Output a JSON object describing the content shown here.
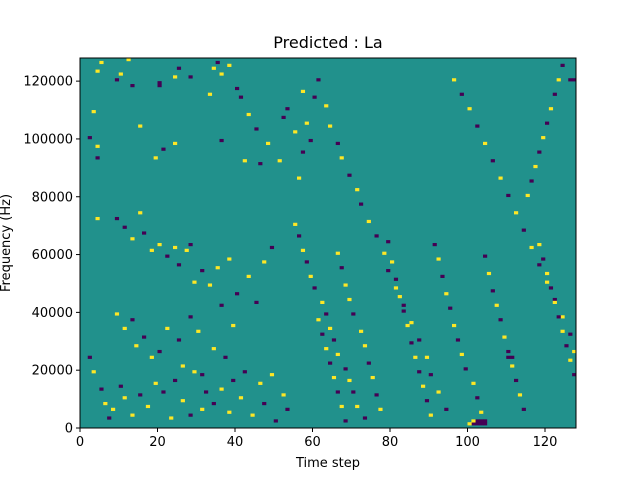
{
  "chart_data": {
    "type": "heatmap",
    "title": "Predicted : La",
    "xlabel": "Time step",
    "ylabel": "Frequency (Hz)",
    "xlim": [
      0,
      128
    ],
    "ylim": [
      0,
      128000
    ],
    "x_ticks": [
      0,
      20,
      40,
      60,
      80,
      100,
      120
    ],
    "y_ticks": [
      0,
      20000,
      40000,
      60000,
      80000,
      100000,
      120000
    ],
    "x_tick_labels": [
      "0",
      "20",
      "40",
      "60",
      "80",
      "100",
      "120"
    ],
    "y_tick_labels": [
      "0",
      "20000",
      "40000",
      "60000",
      "80000",
      "100000",
      "120000"
    ],
    "grid": false,
    "colormap": "viridis",
    "background_value": 0,
    "colors": {
      "background": "#21918c",
      "high": "#fde725",
      "low": "#440154"
    },
    "n_rows": 128,
    "n_cols": 128,
    "note_values": "1 = high (yellow), -1 = low (purple)",
    "cells": [
      [
        4,
        123,
        1
      ],
      [
        5,
        126,
        1
      ],
      [
        9,
        120,
        -1
      ],
      [
        10,
        122,
        1
      ],
      [
        12,
        127,
        1
      ],
      [
        13,
        118,
        -1
      ],
      [
        15,
        104,
        1
      ],
      [
        20,
        119,
        -1
      ],
      [
        24,
        121,
        1
      ],
      [
        25,
        124,
        -1
      ],
      [
        28,
        121,
        -1
      ],
      [
        34,
        124,
        1
      ],
      [
        35,
        126,
        -1
      ],
      [
        36,
        122,
        1
      ],
      [
        38,
        125,
        1
      ],
      [
        40,
        117,
        -1
      ],
      [
        41,
        114,
        -1
      ],
      [
        43,
        108,
        1
      ],
      [
        45,
        103,
        -1
      ],
      [
        48,
        98,
        1
      ],
      [
        51,
        92,
        1
      ],
      [
        53,
        110,
        -1
      ],
      [
        56,
        86,
        1
      ],
      [
        58,
        105,
        1
      ],
      [
        59,
        99,
        -1
      ],
      [
        3,
        109,
        1
      ],
      [
        4,
        97,
        1
      ],
      [
        4,
        93,
        -1
      ],
      [
        2,
        100,
        -1
      ],
      [
        19,
        93,
        1
      ],
      [
        20,
        118,
        -1
      ],
      [
        21,
        96,
        -1
      ],
      [
        24,
        98,
        1
      ],
      [
        33,
        115,
        1
      ],
      [
        36,
        99,
        -1
      ],
      [
        42,
        92,
        1
      ],
      [
        46,
        91,
        -1
      ],
      [
        52,
        107,
        -1
      ],
      [
        55,
        102,
        1
      ],
      [
        57,
        95,
        -1
      ],
      [
        60,
        114,
        -1
      ],
      [
        4,
        72,
        1
      ],
      [
        9,
        72,
        -1
      ],
      [
        11,
        69,
        -1
      ],
      [
        13,
        65,
        1
      ],
      [
        15,
        74,
        1
      ],
      [
        16,
        67,
        -1
      ],
      [
        18,
        61,
        1
      ],
      [
        20,
        63,
        1
      ],
      [
        22,
        59,
        -1
      ],
      [
        24,
        62,
        1
      ],
      [
        25,
        56,
        -1
      ],
      [
        27,
        61,
        1
      ],
      [
        28,
        63,
        -1
      ],
      [
        29,
        50,
        1
      ],
      [
        31,
        54,
        -1
      ],
      [
        33,
        49,
        1
      ],
      [
        35,
        55,
        1
      ],
      [
        36,
        42,
        -1
      ],
      [
        38,
        58,
        1
      ],
      [
        40,
        46,
        -1
      ],
      [
        43,
        52,
        1
      ],
      [
        45,
        43,
        -1
      ],
      [
        47,
        57,
        1
      ],
      [
        49,
        62,
        -1
      ],
      [
        9,
        39,
        1
      ],
      [
        11,
        34,
        1
      ],
      [
        13,
        37,
        -1
      ],
      [
        14,
        28,
        1
      ],
      [
        16,
        31,
        -1
      ],
      [
        18,
        24,
        1
      ],
      [
        20,
        26,
        -1
      ],
      [
        22,
        34,
        1
      ],
      [
        25,
        30,
        -1
      ],
      [
        26,
        21,
        1
      ],
      [
        28,
        38,
        -1
      ],
      [
        30,
        33,
        1
      ],
      [
        31,
        18,
        -1
      ],
      [
        34,
        27,
        1
      ],
      [
        37,
        24,
        -1
      ],
      [
        39,
        35,
        1
      ],
      [
        2,
        24,
        -1
      ],
      [
        3,
        19,
        1
      ],
      [
        5,
        13,
        -1
      ],
      [
        6,
        8,
        1
      ],
      [
        7,
        3,
        -1
      ],
      [
        8,
        6,
        1
      ],
      [
        10,
        14,
        -1
      ],
      [
        11,
        10,
        1
      ],
      [
        13,
        4,
        1
      ],
      [
        15,
        11,
        -1
      ],
      [
        17,
        7,
        1
      ],
      [
        19,
        15,
        1
      ],
      [
        21,
        12,
        -1
      ],
      [
        23,
        3,
        1
      ],
      [
        24,
        16,
        -1
      ],
      [
        26,
        9,
        1
      ],
      [
        28,
        4,
        -1
      ],
      [
        29,
        19,
        1
      ],
      [
        31,
        6,
        1
      ],
      [
        32,
        12,
        -1
      ],
      [
        34,
        8,
        -1
      ],
      [
        36,
        13,
        1
      ],
      [
        38,
        5,
        1
      ],
      [
        39,
        16,
        -1
      ],
      [
        41,
        10,
        1
      ],
      [
        42,
        19,
        -1
      ],
      [
        44,
        4,
        1
      ],
      [
        46,
        15,
        1
      ],
      [
        47,
        8,
        -1
      ],
      [
        49,
        18,
        1
      ],
      [
        50,
        2,
        -1
      ],
      [
        52,
        11,
        1
      ],
      [
        53,
        6,
        -1
      ],
      [
        57,
        116,
        1
      ],
      [
        61,
        120,
        -1
      ],
      [
        63,
        111,
        1
      ],
      [
        64,
        104,
        1
      ],
      [
        66,
        98,
        -1
      ],
      [
        67,
        93,
        1
      ],
      [
        69,
        87,
        -1
      ],
      [
        71,
        82,
        1
      ],
      [
        72,
        77,
        -1
      ],
      [
        74,
        71,
        1
      ],
      [
        76,
        66,
        -1
      ],
      [
        78,
        60,
        1
      ],
      [
        79,
        54,
        -1
      ],
      [
        81,
        48,
        1
      ],
      [
        83,
        42,
        -1
      ],
      [
        85,
        36,
        1
      ],
      [
        87,
        30,
        -1
      ],
      [
        89,
        24,
        1
      ],
      [
        90,
        18,
        -1
      ],
      [
        92,
        12,
        1
      ],
      [
        94,
        6,
        -1
      ],
      [
        96,
        120,
        1
      ],
      [
        98,
        115,
        -1
      ],
      [
        100,
        110,
        1
      ],
      [
        102,
        104,
        -1
      ],
      [
        104,
        98,
        1
      ],
      [
        106,
        92,
        -1
      ],
      [
        108,
        86,
        1
      ],
      [
        110,
        80,
        -1
      ],
      [
        112,
        74,
        1
      ],
      [
        114,
        68,
        -1
      ],
      [
        116,
        62,
        1
      ],
      [
        118,
        56,
        -1
      ],
      [
        120,
        50,
        1
      ],
      [
        122,
        44,
        -1
      ],
      [
        124,
        38,
        1
      ],
      [
        126,
        32,
        -1
      ],
      [
        127,
        26,
        1
      ],
      [
        66,
        60,
        1
      ],
      [
        67,
        55,
        -1
      ],
      [
        68,
        49,
        1
      ],
      [
        69,
        44,
        1
      ],
      [
        70,
        39,
        -1
      ],
      [
        72,
        33,
        1
      ],
      [
        73,
        28,
        1
      ],
      [
        74,
        22,
        -1
      ],
      [
        75,
        17,
        1
      ],
      [
        76,
        11,
        -1
      ],
      [
        77,
        6,
        1
      ],
      [
        79,
        64,
        -1
      ],
      [
        80,
        57,
        1
      ],
      [
        81,
        51,
        -1
      ],
      [
        82,
        45,
        1
      ],
      [
        83,
        40,
        -1
      ],
      [
        84,
        35,
        1
      ],
      [
        85,
        29,
        -1
      ],
      [
        86,
        24,
        1
      ],
      [
        87,
        19,
        -1
      ],
      [
        88,
        14,
        1
      ],
      [
        89,
        9,
        -1
      ],
      [
        90,
        4,
        1
      ],
      [
        91,
        63,
        -1
      ],
      [
        92,
        58,
        1
      ],
      [
        93,
        52,
        -1
      ],
      [
        94,
        46,
        1
      ],
      [
        95,
        41,
        -1
      ],
      [
        96,
        35,
        1
      ],
      [
        97,
        30,
        -1
      ],
      [
        98,
        25,
        1
      ],
      [
        99,
        20,
        -1
      ],
      [
        101,
        15,
        1
      ],
      [
        102,
        10,
        -1
      ],
      [
        103,
        5,
        1
      ],
      [
        104,
        59,
        -1
      ],
      [
        105,
        53,
        1
      ],
      [
        106,
        47,
        -1
      ],
      [
        107,
        42,
        1
      ],
      [
        108,
        37,
        -1
      ],
      [
        109,
        31,
        1
      ],
      [
        110,
        26,
        -1
      ],
      [
        111,
        21,
        1
      ],
      [
        112,
        16,
        -1
      ],
      [
        113,
        11,
        1
      ],
      [
        114,
        6,
        -1
      ],
      [
        61,
        37,
        1
      ],
      [
        62,
        32,
        -1
      ],
      [
        63,
        27,
        1
      ],
      [
        64,
        22,
        -1
      ],
      [
        65,
        17,
        1
      ],
      [
        66,
        12,
        -1
      ],
      [
        67,
        7,
        1
      ],
      [
        68,
        2,
        -1
      ],
      [
        55,
        70,
        1
      ],
      [
        56,
        66,
        -1
      ],
      [
        57,
        61,
        1
      ],
      [
        58,
        57,
        -1
      ],
      [
        59,
        52,
        1
      ],
      [
        60,
        48,
        -1
      ],
      [
        62,
        43,
        1
      ],
      [
        63,
        39,
        -1
      ],
      [
        64,
        34,
        1
      ],
      [
        65,
        30,
        -1
      ],
      [
        66,
        25,
        1
      ],
      [
        68,
        20,
        -1
      ],
      [
        69,
        16,
        1
      ],
      [
        70,
        12,
        -1
      ],
      [
        71,
        7,
        1
      ],
      [
        73,
        3,
        -1
      ],
      [
        118,
        63,
        1
      ],
      [
        119,
        58,
        -1
      ],
      [
        120,
        53,
        1
      ],
      [
        121,
        48,
        -1
      ],
      [
        122,
        43,
        1
      ],
      [
        123,
        38,
        -1
      ],
      [
        124,
        33,
        1
      ],
      [
        125,
        28,
        -1
      ],
      [
        126,
        23,
        1
      ],
      [
        127,
        18,
        -1
      ],
      [
        115,
        80,
        1
      ],
      [
        116,
        85,
        -1
      ],
      [
        117,
        90,
        1
      ],
      [
        118,
        95,
        -1
      ],
      [
        119,
        100,
        1
      ],
      [
        120,
        105,
        -1
      ],
      [
        121,
        110,
        1
      ],
      [
        122,
        115,
        -1
      ],
      [
        123,
        120,
        1
      ],
      [
        124,
        125,
        -1
      ],
      [
        102,
        2,
        -1
      ],
      [
        103,
        2,
        -1
      ],
      [
        104,
        2,
        -1
      ],
      [
        101,
        1,
        -1
      ],
      [
        102,
        1,
        -1
      ],
      [
        103,
        1,
        -1
      ],
      [
        104,
        1,
        -1
      ],
      [
        101,
        2,
        1
      ],
      [
        100,
        1,
        1
      ],
      [
        110,
        24,
        -1
      ],
      [
        111,
        24,
        -1
      ],
      [
        127,
        120,
        -1
      ],
      [
        126,
        120,
        -1
      ]
    ]
  }
}
